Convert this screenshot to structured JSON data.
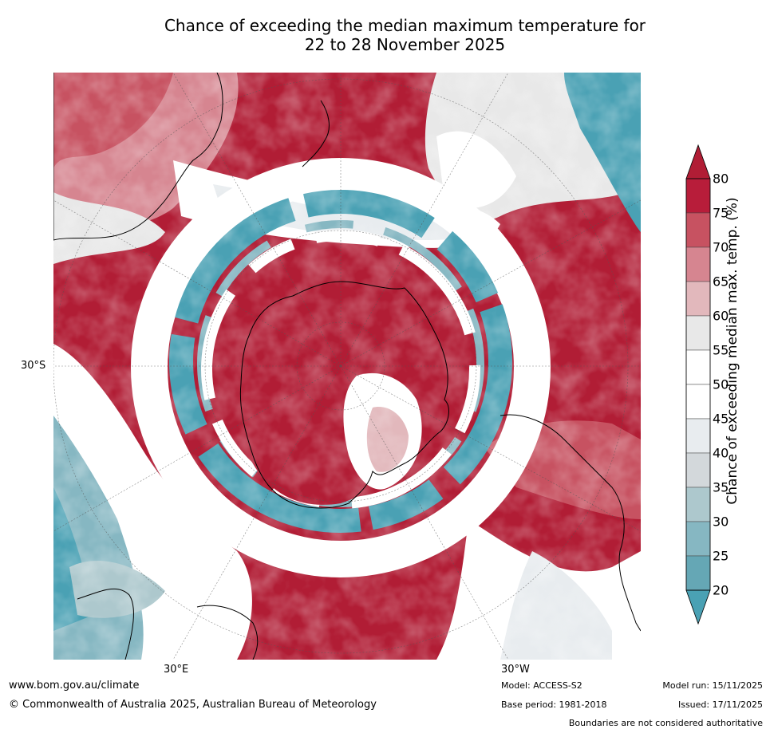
{
  "title": {
    "line1": "Chance of exceeding the median maximum temperature for",
    "line2": "22 to 28 November 2025"
  },
  "map": {
    "projection": "South polar stereographic",
    "lat_label": "30°S",
    "lon_labels": [
      "30°E",
      "30°W"
    ]
  },
  "colorbar": {
    "label": "Chance of exceeding median max. temp. (%)",
    "ticks": [
      "80",
      "75",
      "70",
      "65",
      "60",
      "55",
      "50",
      "45",
      "40",
      "35",
      "30",
      "25",
      "20"
    ],
    "bins": [
      {
        "range": "75-80",
        "color": "#b81d3a"
      },
      {
        "range": "70-75",
        "color": "#c75261"
      },
      {
        "range": "65-70",
        "color": "#d68590"
      },
      {
        "range": "60-65",
        "color": "#e2b8bc"
      },
      {
        "range": "55-60",
        "color": "#e8e8e8"
      },
      {
        "range": "50-55",
        "color": "#ffffff"
      },
      {
        "range": "45-50",
        "color": "#ffffff"
      },
      {
        "range": "40-45",
        "color": "#e8ecef"
      },
      {
        "range": "35-40",
        "color": "#d3d8db"
      },
      {
        "range": "30-35",
        "color": "#adc8cd"
      },
      {
        "range": "25-30",
        "color": "#86b7c2"
      },
      {
        "range": "20-25",
        "color": "#65a7b5"
      }
    ],
    "over_color": "#b11d35",
    "under_color": "#4aa1b4"
  },
  "footer": {
    "website": "www.bom.gov.au/climate",
    "copyright": "© Commonwealth of Australia 2025, Australian Bureau of Meteorology",
    "model": "Model: ACCESS-S2",
    "base_period": "Base period: 1981-2018",
    "model_run": "Model run: 15/11/2025",
    "issued": "Issued: 17/11/2025",
    "disclaimer": "Boundaries are not considered authoritative"
  }
}
